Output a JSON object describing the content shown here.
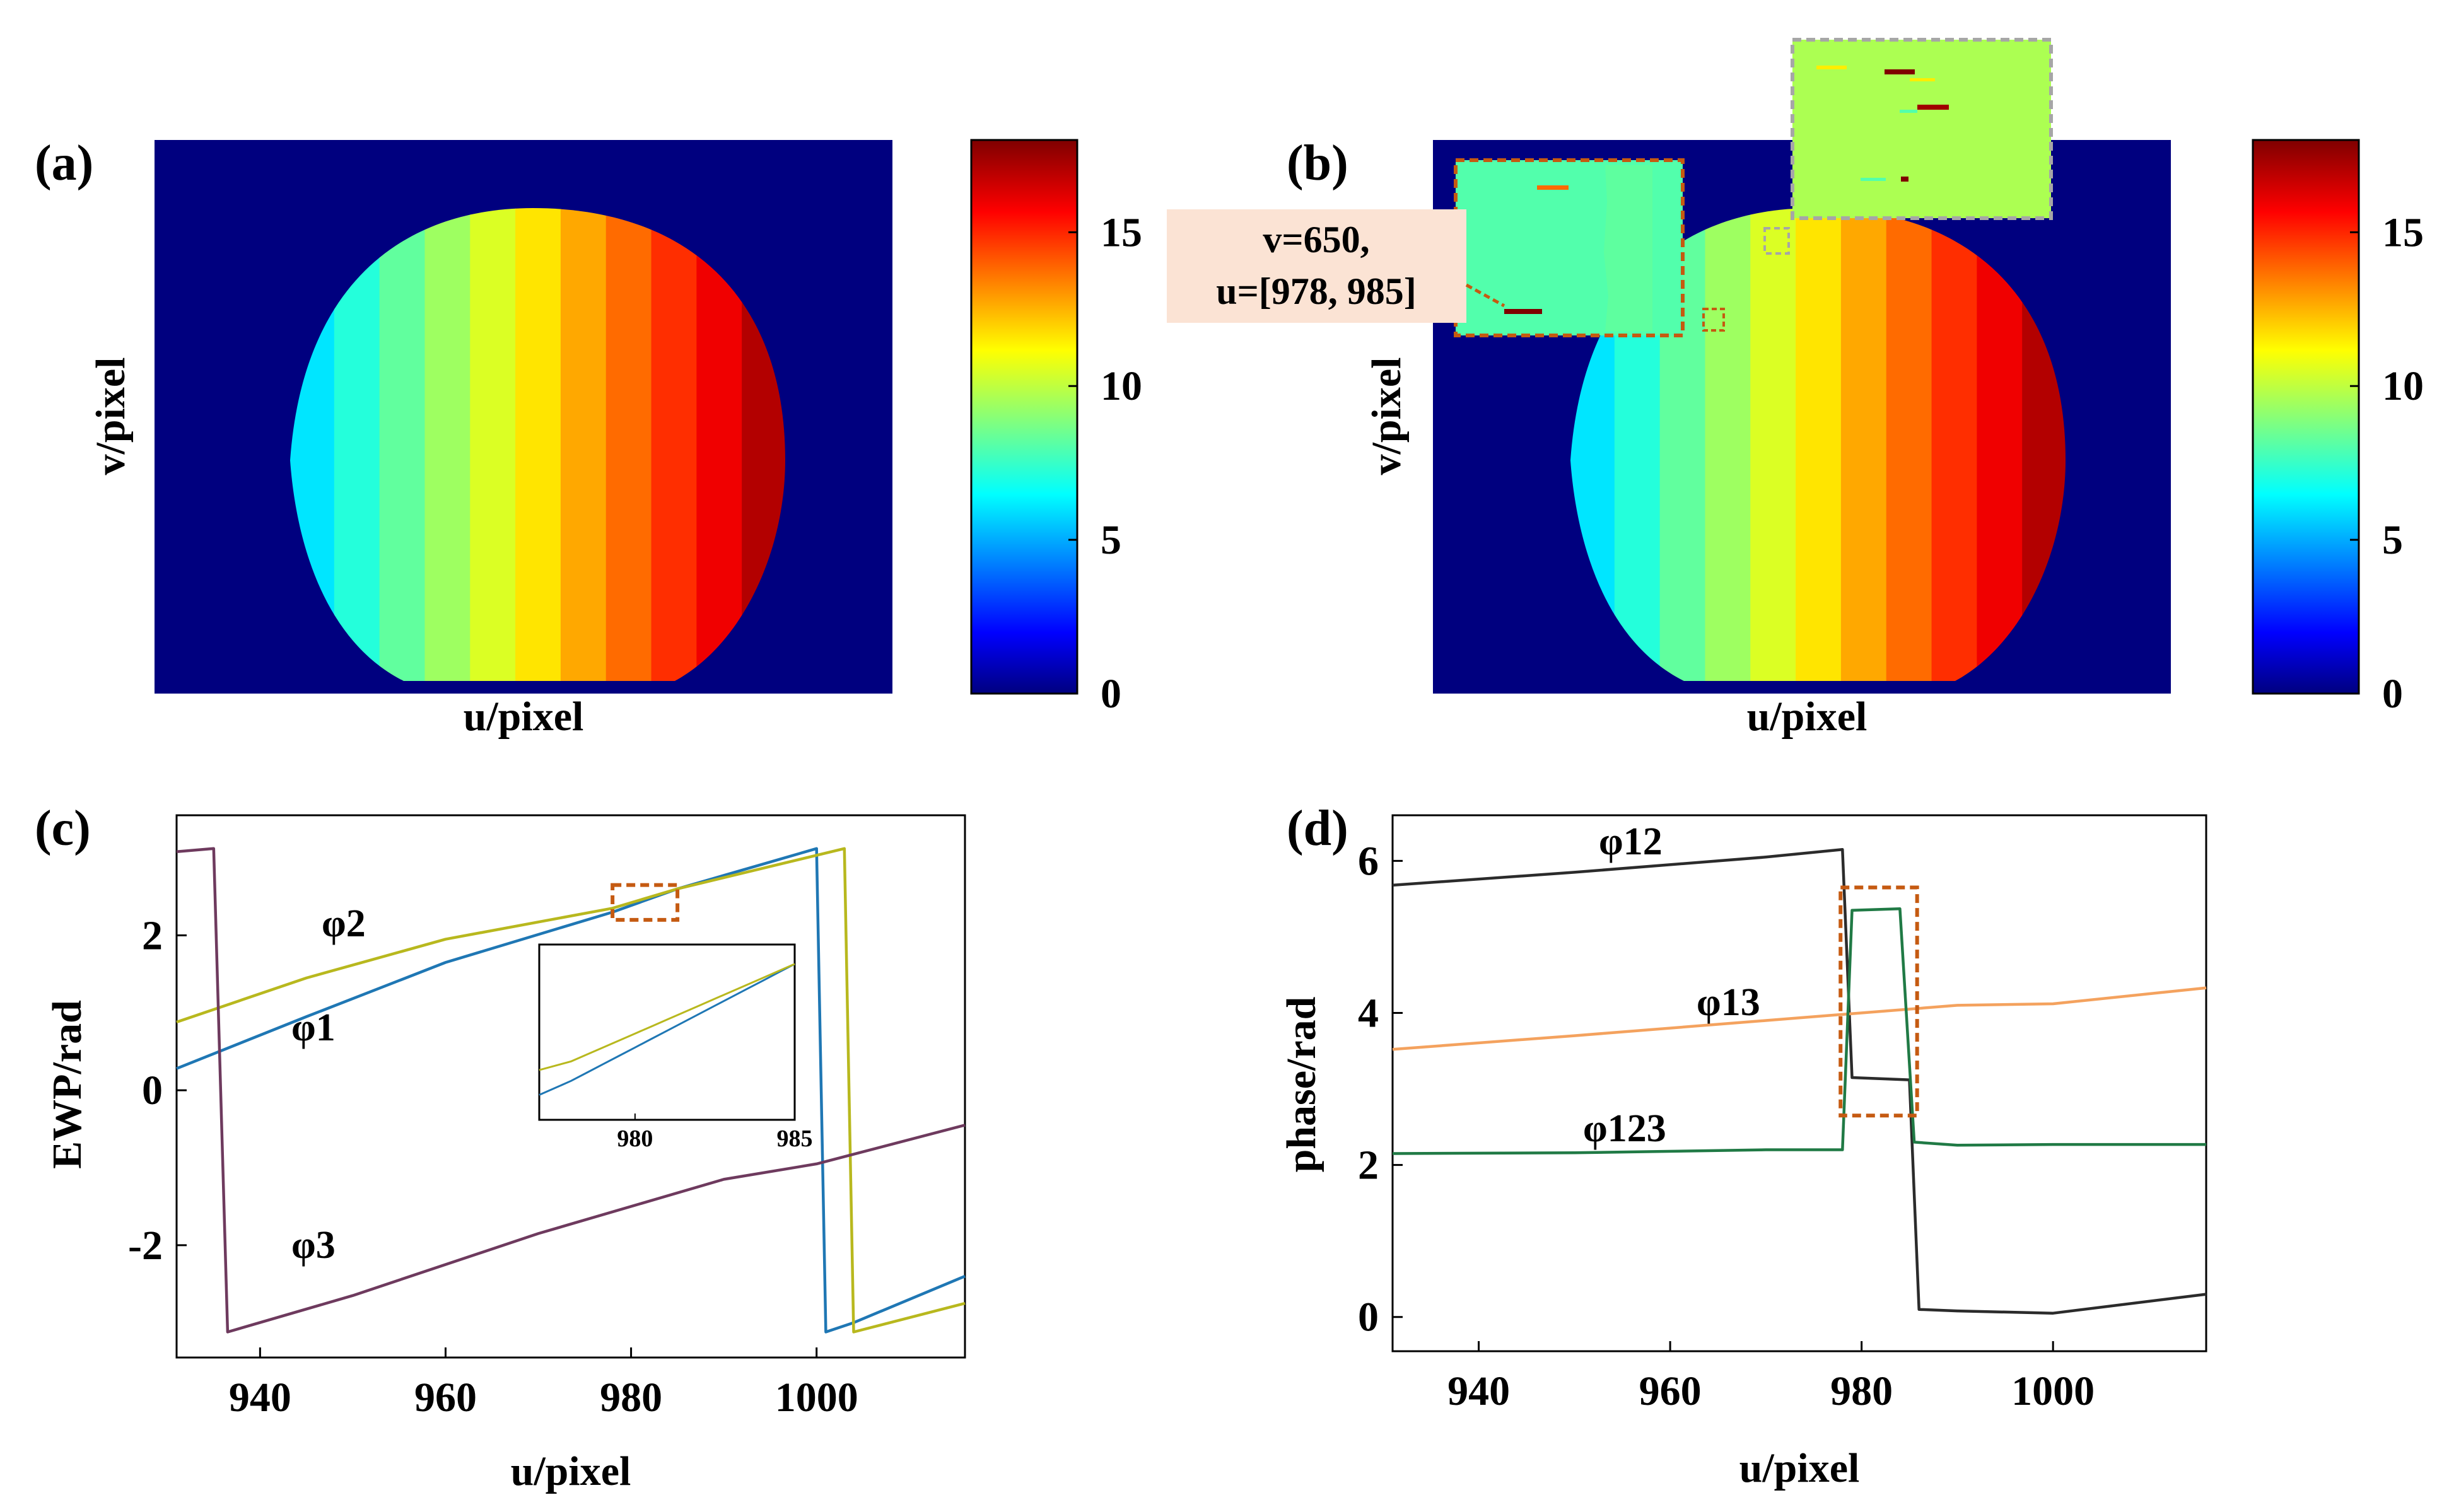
{
  "colormap": "jet",
  "colors": {
    "background_map": "#00007f",
    "inset_b1_bg": "#52ffac",
    "inset_b2_bg": "#acff52",
    "callout_bg": "#fbe3d4",
    "dashed_orange": "#c55a11",
    "dashed_gray": "#a6a6a6",
    "phi1": "#1f77b4",
    "phi2": "#b8b81e",
    "phi3": "#6e3a5e",
    "phi12": "#2b2b2b",
    "phi13": "#f4a25e",
    "phi123": "#207a45"
  },
  "panels": {
    "a": {
      "label": "(a)",
      "xlabel": "u/pixel",
      "ylabel": "v/pixel",
      "colorbar": {
        "min": 0,
        "max": 18,
        "ticks": [
          "0",
          "5",
          "10",
          "15"
        ]
      },
      "stripes": 11
    },
    "b": {
      "label": "(b)",
      "xlabel": "u/pixel",
      "ylabel": "v/pixel",
      "colorbar": {
        "min": 0,
        "max": 18,
        "ticks": [
          "0",
          "5",
          "10",
          "15"
        ]
      },
      "callout_line1": "v=650,",
      "callout_line2": "u=[978, 985]"
    }
  },
  "chart_data": [
    {
      "panel": "(c)",
      "type": "line",
      "xlabel": "u/pixel",
      "ylabel": "EWP/rad",
      "xlim": [
        931,
        1016
      ],
      "ylim": [
        -3.45,
        3.55
      ],
      "xticks": [
        940,
        960,
        980,
        1000
      ],
      "yticks": [
        -2,
        0,
        2
      ],
      "ytick_labels": [
        "-2",
        "0",
        "2"
      ],
      "series": [
        {
          "name": "φ1",
          "color": "#1f77b4",
          "points": [
            [
              931,
              0.28
            ],
            [
              945,
              0.95
            ],
            [
              960,
              1.65
            ],
            [
              978,
              2.3
            ],
            [
              985,
              2.6
            ],
            [
              1000,
              3.12
            ],
            [
              1001,
              -3.12
            ],
            [
              1004,
              -3.0
            ],
            [
              1016,
              -2.4
            ]
          ]
        },
        {
          "name": "φ2",
          "color": "#b8b81e",
          "points": [
            [
              931,
              0.88
            ],
            [
              945,
              1.45
            ],
            [
              960,
              1.95
            ],
            [
              978,
              2.35
            ],
            [
              985,
              2.6
            ],
            [
              1003,
              3.12
            ],
            [
              1004,
              -3.12
            ],
            [
              1016,
              -2.75
            ]
          ]
        },
        {
          "name": "φ3",
          "color": "#6e3a5e",
          "points": [
            [
              931,
              3.08
            ],
            [
              935,
              3.12
            ],
            [
              936.5,
              -3.12
            ],
            [
              950,
              -2.65
            ],
            [
              970,
              -1.85
            ],
            [
              990,
              -1.15
            ],
            [
              1000,
              -0.95
            ],
            [
              1016,
              -0.45
            ]
          ]
        }
      ],
      "annotations": [
        "φ1",
        "φ2",
        "φ3"
      ],
      "zoom_box": {
        "x": [
          978,
          985
        ],
        "y": [
          2.2,
          2.65
        ]
      },
      "inset": {
        "xlim": [
          977,
          985
        ],
        "xticks": [
          980,
          985
        ]
      }
    },
    {
      "panel": "(d)",
      "type": "line",
      "xlabel": "u/pixel",
      "ylabel": "phase/rad",
      "xlim": [
        931,
        1016
      ],
      "ylim": [
        -0.45,
        6.6
      ],
      "xticks": [
        940,
        960,
        980,
        1000
      ],
      "yticks": [
        0,
        2,
        4,
        6
      ],
      "ytick_labels": [
        "0",
        "2",
        "4",
        "6"
      ],
      "series": [
        {
          "name": "φ12",
          "color": "#2b2b2b",
          "points": [
            [
              931,
              5.68
            ],
            [
              950,
              5.85
            ],
            [
              970,
              6.05
            ],
            [
              978,
              6.15
            ],
            [
              979,
              3.15
            ],
            [
              985,
              3.12
            ],
            [
              986,
              0.1
            ],
            [
              990,
              0.08
            ],
            [
              1000,
              0.05
            ],
            [
              1016,
              0.3
            ]
          ]
        },
        {
          "name": "φ13",
          "color": "#f4a25e",
          "points": [
            [
              931,
              3.52
            ],
            [
              950,
              3.7
            ],
            [
              970,
              3.9
            ],
            [
              990,
              4.1
            ],
            [
              1000,
              4.12
            ],
            [
              1016,
              4.33
            ]
          ]
        },
        {
          "name": "φ123",
          "color": "#207a45",
          "points": [
            [
              931,
              2.15
            ],
            [
              950,
              2.16
            ],
            [
              970,
              2.2
            ],
            [
              978,
              2.2
            ],
            [
              979,
              5.35
            ],
            [
              984,
              5.37
            ],
            [
              985.5,
              2.3
            ],
            [
              990,
              2.26
            ],
            [
              1000,
              2.27
            ],
            [
              1016,
              2.27
            ]
          ]
        }
      ],
      "annotations": [
        "φ12",
        "φ13",
        "φ123"
      ],
      "zoom_box": {
        "x": [
          977.8,
          985.8
        ],
        "y": [
          2.65,
          5.65
        ]
      }
    }
  ]
}
